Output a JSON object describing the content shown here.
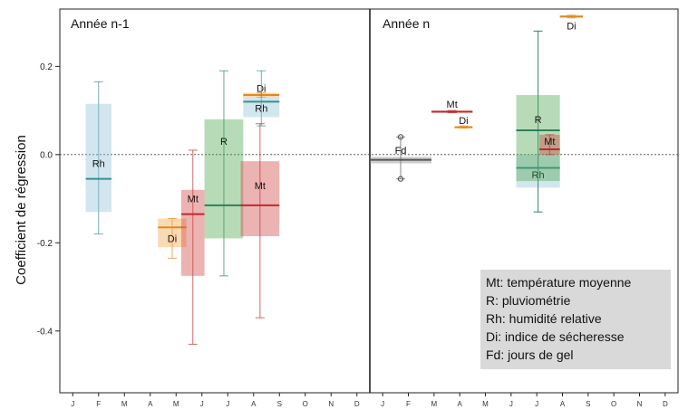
{
  "chart_data": {
    "type": "boxplot",
    "ylabel": "Coefficient de régression",
    "ylim": [
      -0.54,
      0.33
    ],
    "yticks": [
      -0.4,
      -0.2,
      0.0,
      0.2
    ],
    "ytick_labels": [
      "-0.4",
      "-0.2",
      "0.0",
      "0.2"
    ],
    "reference_line": 0.0,
    "months": [
      "J",
      "F",
      "M",
      "A",
      "M",
      "J",
      "J",
      "A",
      "S",
      "O",
      "N",
      "D",
      "J",
      "F",
      "M",
      "A",
      "M",
      "J",
      "J",
      "A",
      "S",
      "O",
      "N",
      "D"
    ],
    "panels": [
      {
        "title": "Année n-1",
        "x_start": 0,
        "x_end": 12
      },
      {
        "title": "Année n",
        "x_start": 12,
        "x_end": 24
      }
    ],
    "colors": {
      "Rh": "#8ec0d8",
      "Di": "#f5a040",
      "Mt": "#d04040",
      "R": "#4aa64a",
      "Fd": "#888888"
    },
    "median_colors": {
      "Rh": "#3a9090",
      "Di": "#e08a20",
      "Mt": "#c02a2a",
      "R": "#2f7f5a",
      "Fd": "#555555"
    },
    "boxes": [
      {
        "var": "Rh",
        "label": "Rh",
        "x0": 1.0,
        "x1": 2.0,
        "q1": -0.13,
        "median": -0.055,
        "q3": 0.115,
        "wlo": -0.18,
        "whi": 0.165,
        "label_y": -0.02
      },
      {
        "var": "Di",
        "label": "Di",
        "x0": 3.8,
        "x1": 4.9,
        "q1": -0.21,
        "median": -0.165,
        "q3": -0.145,
        "wlo": -0.235,
        "whi": -0.145,
        "label_y": -0.19
      },
      {
        "var": "Mt",
        "label": "Mt",
        "x0": 4.7,
        "x1": 5.6,
        "q1": -0.275,
        "median": -0.135,
        "q3": -0.08,
        "wlo": -0.43,
        "whi": 0.01,
        "label_y": -0.1
      },
      {
        "var": "R",
        "label": "R",
        "x0": 5.6,
        "x1": 7.1,
        "q1": -0.19,
        "median": -0.115,
        "q3": 0.08,
        "wlo": -0.275,
        "whi": 0.19,
        "label_y": 0.03
      },
      {
        "var": "Di",
        "label": "Di",
        "x0": 7.1,
        "x1": 8.5,
        "q1": 0.13,
        "median": 0.135,
        "q3": 0.14,
        "wlo": 0.13,
        "whi": 0.14,
        "label_y": 0.15
      },
      {
        "var": "Rh",
        "label": "Rh",
        "x0": 7.1,
        "x1": 8.5,
        "q1": 0.085,
        "median": 0.12,
        "q3": 0.13,
        "wlo": 0.065,
        "whi": 0.19,
        "label_y": 0.105
      },
      {
        "var": "Mt",
        "label": "Mt",
        "x0": 7.0,
        "x1": 8.5,
        "q1": -0.185,
        "median": -0.115,
        "q3": -0.015,
        "wlo": -0.37,
        "whi": 0.07,
        "label_y": -0.07
      },
      {
        "var": "Mt",
        "label": "Mt",
        "x0": 14.4,
        "x1": 16.0,
        "q1": 0.095,
        "median": 0.097,
        "q3": 0.1,
        "wlo": 0.095,
        "whi": 0.1,
        "label_y": 0.115
      },
      {
        "var": "Di",
        "label": "Di",
        "x0": 15.3,
        "x1": 16.0,
        "q1": 0.06,
        "median": 0.062,
        "q3": 0.065,
        "wlo": 0.06,
        "whi": 0.065,
        "label_y": 0.078
      },
      {
        "var": "Fd",
        "label": "Fd",
        "x0": 12.0,
        "x1": 14.4,
        "q1": -0.02,
        "median": -0.012,
        "q3": -0.005,
        "wlo": -0.055,
        "whi": 0.04,
        "label_y": 0.01
      },
      {
        "var": "Rh",
        "label": "Rh",
        "x0": 17.7,
        "x1": 19.4,
        "q1": -0.075,
        "median": -0.03,
        "q3": 0.0,
        "wlo": -0.13,
        "whi": 0.28,
        "label_y": -0.045
      },
      {
        "var": "R",
        "label": "R",
        "x0": 17.7,
        "x1": 19.4,
        "q1": -0.06,
        "median": 0.055,
        "q3": 0.135,
        "wlo": -0.13,
        "whi": 0.28,
        "label_y": 0.08
      },
      {
        "var": "Mt",
        "label": "Mt",
        "x0": 18.6,
        "x1": 19.4,
        "q1": 0.0,
        "median": 0.012,
        "q3": 0.045,
        "wlo": 0.0,
        "whi": 0.045,
        "label_y": 0.03
      },
      {
        "var": "Di",
        "label": "Di",
        "x0": 19.4,
        "x1": 20.3,
        "q1": 0.31,
        "median": 0.313,
        "q3": 0.316,
        "wlo": 0.31,
        "whi": 0.316,
        "label_y": 0.292
      }
    ],
    "outliers": [
      {
        "x": 13.2,
        "y": 0.04
      },
      {
        "x": 13.2,
        "y": -0.055
      }
    ],
    "legend": {
      "placement": "bottom-right",
      "entries": [
        "Mt: température moyenne",
        "R: pluviométrie",
        "Rh: humidité relative",
        "Di: indice de sécheresse",
        "Fd: jours de gel"
      ]
    }
  }
}
